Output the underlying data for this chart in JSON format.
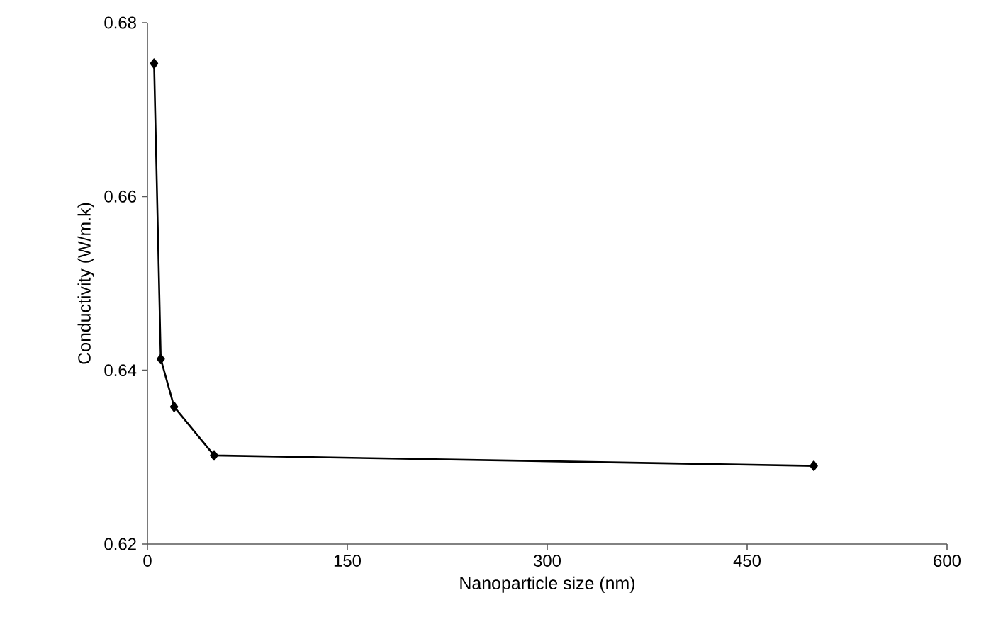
{
  "chart_data": {
    "type": "line",
    "xlabel": "Nanoparticle size (nm)",
    "ylabel": "Conductivity (W/m.k)",
    "x": [
      5,
      10,
      20,
      50,
      500
    ],
    "values": [
      0.6753,
      0.6413,
      0.6358,
      0.6302,
      0.629
    ],
    "color": "#000000",
    "marker": "diamond",
    "line_style": "solid",
    "xlim": [
      0,
      600
    ],
    "xticks": [
      0,
      150,
      300,
      450,
      600
    ],
    "ylim": [
      0.62,
      0.68
    ],
    "yticks": [
      0.62,
      0.64,
      0.66,
      0.68
    ],
    "grid": false
  }
}
